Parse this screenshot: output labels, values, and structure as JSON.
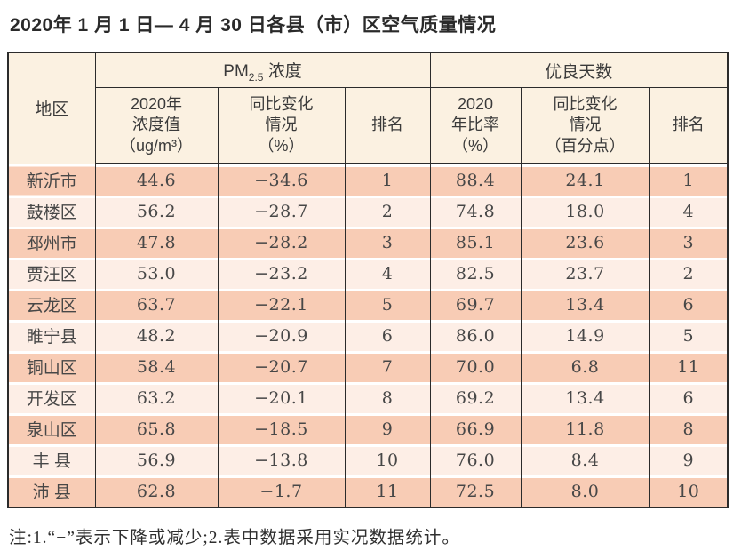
{
  "title": "2020年 1 月 1 日— 4 月 30 日各县（市）区空气质量情况",
  "note": "注:1.“−”表示下降或减少;2.表中数据采用实况数据统计。",
  "colors": {
    "row-odd": "#f8ccb5",
    "row-even": "#fdeee6",
    "header-bg": "#fbf1e1",
    "border": "#2b2b2b",
    "text": "#3c3c3c"
  },
  "table": {
    "region_header": "地区",
    "group_pm25": {
      "prefix": "PM",
      "sub": "2.5",
      "suffix": " 浓度"
    },
    "group_days": "优良天数",
    "columns": {
      "pm_value": {
        "lines": [
          "2020年",
          "浓度值",
          "（ug/m³）"
        ]
      },
      "pm_change": {
        "lines": [
          "同比变化",
          "情况",
          "（%）"
        ]
      },
      "pm_rank": "排名",
      "days_rate": {
        "lines": [
          "2020",
          "年比率",
          "（%）"
        ]
      },
      "days_change": {
        "lines": [
          "同比变化",
          "情况",
          "（百分点）"
        ]
      },
      "days_rank": "排名"
    },
    "row_keys": [
      "region",
      "pm_value",
      "pm_change",
      "pm_rank",
      "rate",
      "rate_change",
      "rate_rank"
    ],
    "rows": [
      {
        "region": "新沂市",
        "pm_value": "44.6",
        "pm_change": "−34.6",
        "pm_rank": "1",
        "rate": "88.4",
        "rate_change": "24.1",
        "rate_rank": "1"
      },
      {
        "region": "鼓楼区",
        "pm_value": "56.2",
        "pm_change": "−28.7",
        "pm_rank": "2",
        "rate": "74.8",
        "rate_change": "18.0",
        "rate_rank": "4"
      },
      {
        "region": "邳州市",
        "pm_value": "47.8",
        "pm_change": "−28.2",
        "pm_rank": "3",
        "rate": "85.1",
        "rate_change": "23.6",
        "rate_rank": "3"
      },
      {
        "region": "贾汪区",
        "pm_value": "53.0",
        "pm_change": "−23.2",
        "pm_rank": "4",
        "rate": "82.5",
        "rate_change": "23.7",
        "rate_rank": "2"
      },
      {
        "region": "云龙区",
        "pm_value": "63.7",
        "pm_change": "−22.1",
        "pm_rank": "5",
        "rate": "69.7",
        "rate_change": "13.4",
        "rate_rank": "6"
      },
      {
        "region": "睢宁县",
        "pm_value": "48.2",
        "pm_change": "−20.9",
        "pm_rank": "6",
        "rate": "86.0",
        "rate_change": "14.9",
        "rate_rank": "5"
      },
      {
        "region": "铜山区",
        "pm_value": "58.4",
        "pm_change": "−20.7",
        "pm_rank": "7",
        "rate": "70.0",
        "rate_change": "6.8",
        "rate_rank": "11"
      },
      {
        "region": "开发区",
        "pm_value": "63.2",
        "pm_change": "−20.1",
        "pm_rank": "8",
        "rate": "69.2",
        "rate_change": "13.4",
        "rate_rank": "6"
      },
      {
        "region": "泉山区",
        "pm_value": "65.8",
        "pm_change": "−18.5",
        "pm_rank": "9",
        "rate": "66.9",
        "rate_change": "11.8",
        "rate_rank": "8"
      },
      {
        "region": "丰 县",
        "pm_value": "56.9",
        "pm_change": "−13.8",
        "pm_rank": "10",
        "rate": "76.0",
        "rate_change": "8.4",
        "rate_rank": "9"
      },
      {
        "region": "沛 县",
        "pm_value": "62.8",
        "pm_change": "−1.7",
        "pm_rank": "11",
        "rate": "72.5",
        "rate_change": "8.0",
        "rate_rank": "10"
      }
    ]
  }
}
